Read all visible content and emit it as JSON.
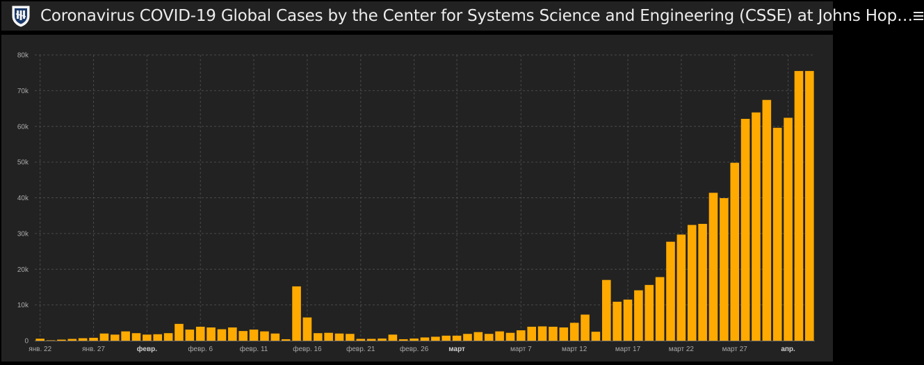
{
  "header": {
    "title": "Coronavirus COVID-19 Global Cases by the Center for Systems Science and Engineering (CSSE) at Johns Hop…",
    "logo_icon": "university-shield-icon",
    "menu_icon": "hamburger-menu-icon"
  },
  "colors": {
    "background": "#222222",
    "bar": "#ffaa00",
    "grid": "#4a4a4a",
    "axis_text": "#aaaaaa"
  },
  "chart_data": {
    "type": "bar",
    "title": "",
    "xlabel": "",
    "ylabel": "",
    "ylim": [
      0,
      80000
    ],
    "grid": true,
    "y_ticks": [
      {
        "value": 0,
        "label": "0"
      },
      {
        "value": 10000,
        "label": "10k"
      },
      {
        "value": 20000,
        "label": "20k"
      },
      {
        "value": 30000,
        "label": "30k"
      },
      {
        "value": 40000,
        "label": "40k"
      },
      {
        "value": 50000,
        "label": "50k"
      },
      {
        "value": 60000,
        "label": "60k"
      },
      {
        "value": 70000,
        "label": "70k"
      },
      {
        "value": 80000,
        "label": "80k"
      }
    ],
    "x_ticks": [
      {
        "index": 1,
        "label": "янв. 22",
        "bold": false
      },
      {
        "index": 6,
        "label": "янв. 27",
        "bold": false
      },
      {
        "index": 11,
        "label": "февр.",
        "bold": true
      },
      {
        "index": 16,
        "label": "февр. 6",
        "bold": false
      },
      {
        "index": 21,
        "label": "февр. 11",
        "bold": false
      },
      {
        "index": 26,
        "label": "февр. 16",
        "bold": false
      },
      {
        "index": 31,
        "label": "февр. 21",
        "bold": false
      },
      {
        "index": 36,
        "label": "февр. 26",
        "bold": false
      },
      {
        "index": 40,
        "label": "март",
        "bold": true
      },
      {
        "index": 46,
        "label": "март 7",
        "bold": false
      },
      {
        "index": 51,
        "label": "март 12",
        "bold": false
      },
      {
        "index": 56,
        "label": "март 17",
        "bold": false
      },
      {
        "index": 61,
        "label": "март 22",
        "bold": false
      },
      {
        "index": 66,
        "label": "март 27",
        "bold": false
      },
      {
        "index": 71,
        "label": "апр.",
        "bold": true
      }
    ],
    "values": [
      555,
      100,
      290,
      490,
      680,
      800,
      2000,
      1700,
      2600,
      2100,
      1700,
      1800,
      2100,
      4700,
      3100,
      3900,
      3700,
      3200,
      3700,
      2700,
      3100,
      2600,
      2000,
      400,
      15200,
      6500,
      2100,
      2200,
      2000,
      1900,
      500,
      500,
      600,
      1700,
      400,
      600,
      900,
      1100,
      1400,
      1400,
      1900,
      2400,
      1900,
      2600,
      2200,
      2900,
      3900,
      4000,
      3900,
      3700,
      5000,
      7300,
      2500,
      17000,
      10900,
      11500,
      14100,
      15600,
      17800,
      27700,
      29700,
      32400,
      32700,
      41400,
      39900,
      49800,
      62100,
      63900,
      67400,
      59600,
      62400,
      75500,
      75500
    ]
  }
}
